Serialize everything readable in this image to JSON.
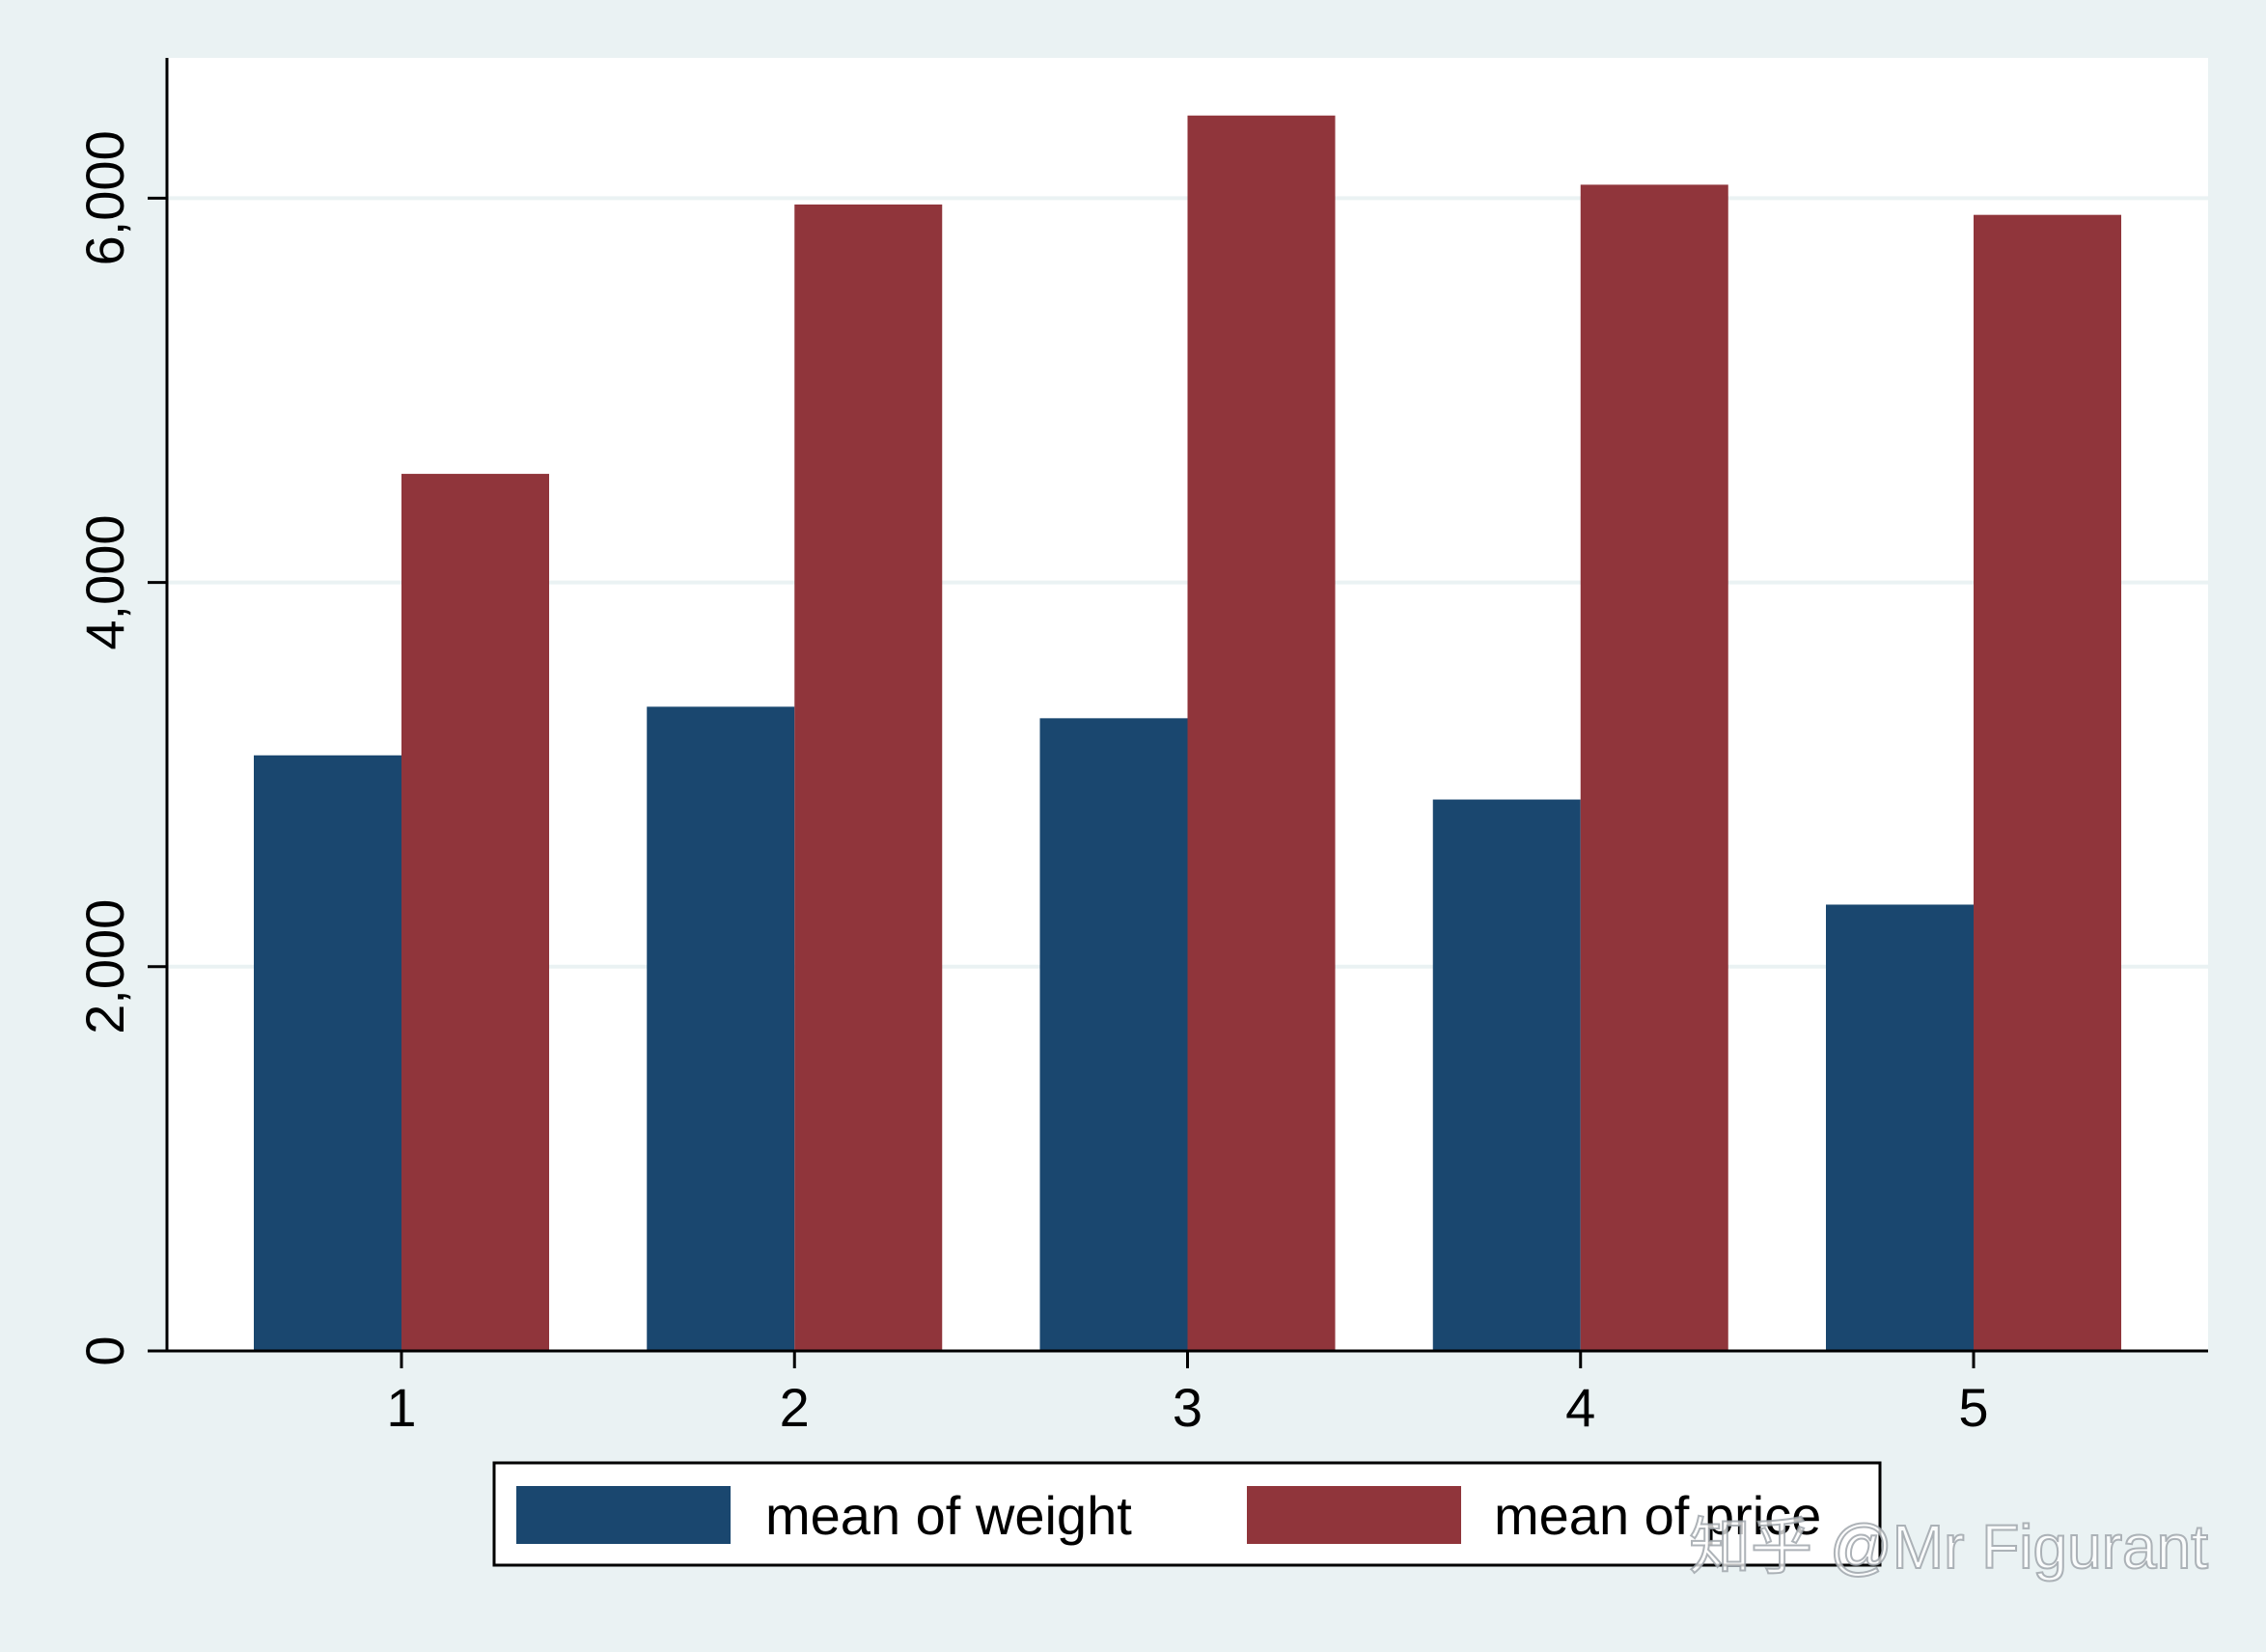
{
  "chart_data": {
    "type": "bar",
    "categories": [
      "1",
      "2",
      "3",
      "4",
      "5"
    ],
    "series": [
      {
        "name": "mean of weight",
        "values": [
          3100,
          3353,
          3293,
          2870,
          2323
        ]
      },
      {
        "name": "mean of price",
        "values": [
          4565,
          5967,
          6430,
          6070,
          5913
        ]
      }
    ],
    "yticks": [
      0,
      2000,
      4000,
      6000
    ],
    "ytick_labels": [
      "0",
      "2,000",
      "4,000",
      "6,000"
    ],
    "ylim": [
      0,
      6730
    ],
    "grid": true,
    "legend_position": "bottom",
    "colors": {
      "mean of weight": "#1a476f",
      "mean of price": "#90353b",
      "background": "#eaf2f3",
      "plot_background": "#ffffff",
      "grid": "#eaf2f3"
    },
    "title": "",
    "xlabel": "",
    "ylabel": ""
  },
  "watermark": "知乎 @Mr Figurant"
}
